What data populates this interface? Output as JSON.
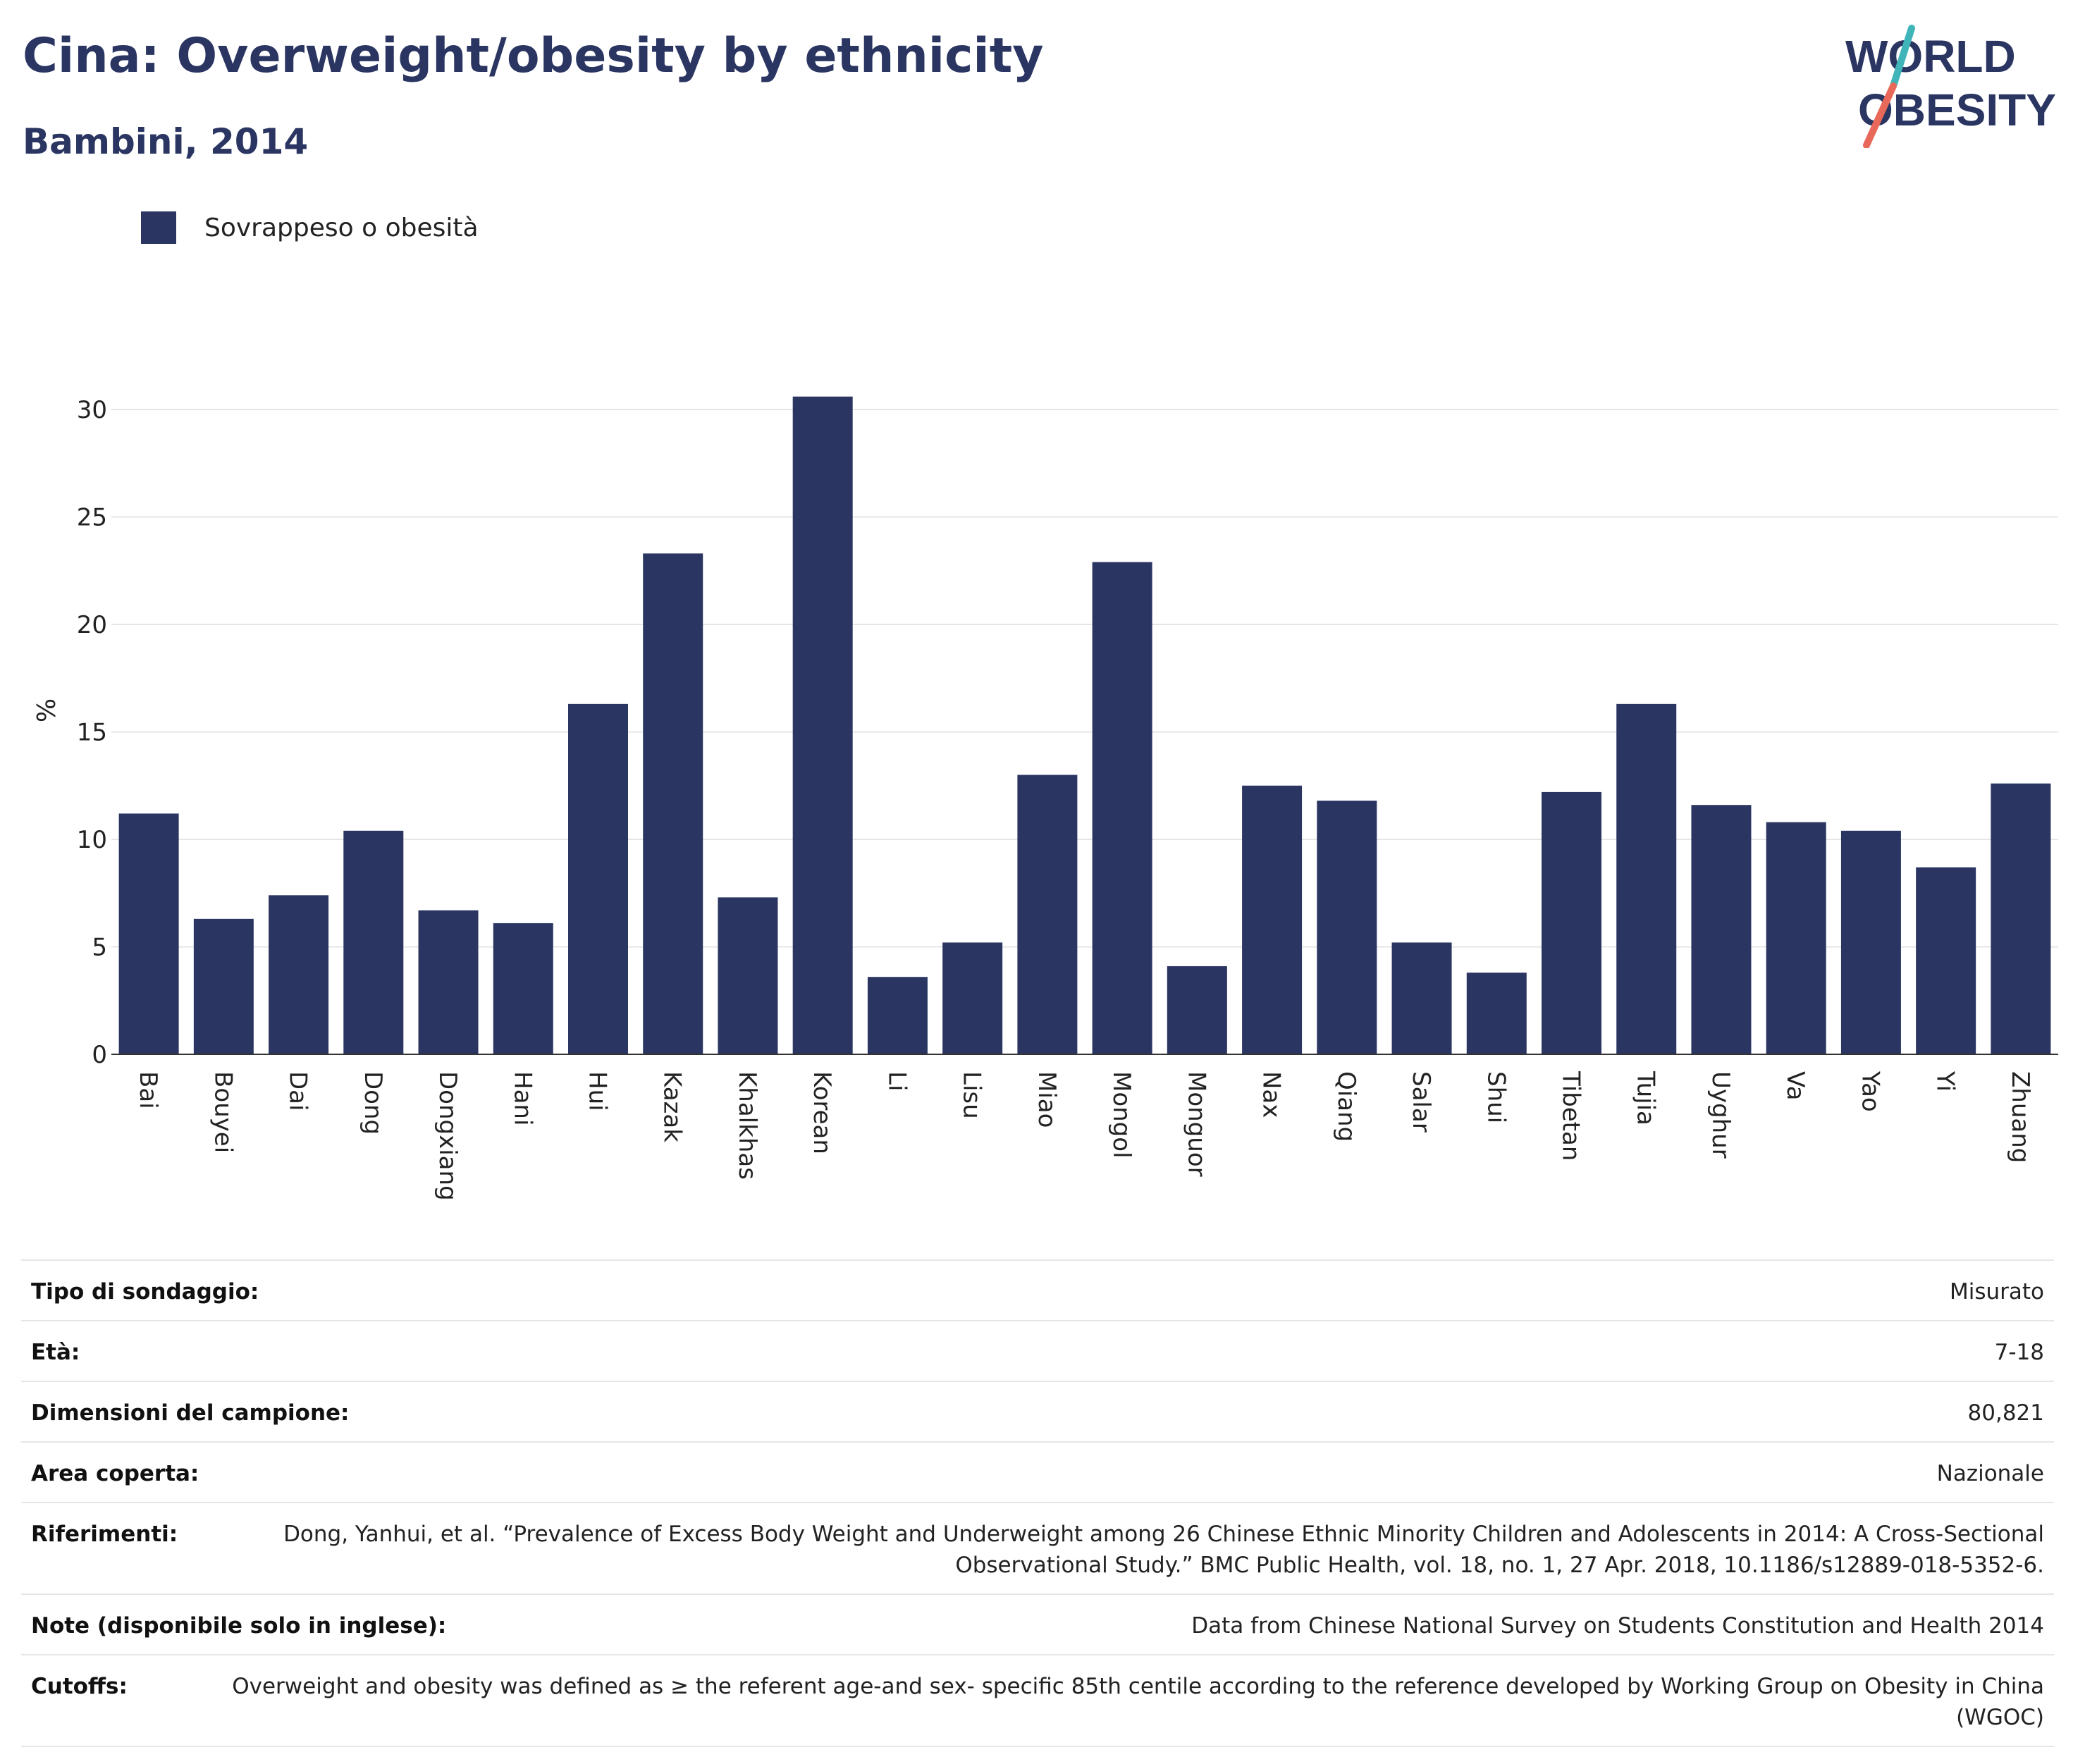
{
  "header": {
    "title": "Cina: Overweight/obesity by ethnicity",
    "subtitle": "Bambini, 2014"
  },
  "logo": {
    "line1": "WORLD",
    "line2": "OBESITY"
  },
  "legend": {
    "label": "Sovrappeso o obesità",
    "color": "#2a3562"
  },
  "colors": {
    "bar": "#2a3562",
    "text": "#222222",
    "grid": "#e6e6e6",
    "logo_text": "#2a3562",
    "logo_slash_top": "#3fb5b9",
    "logo_slash_bottom": "#e8685a"
  },
  "chart_data": {
    "type": "bar",
    "title": "",
    "xlabel": "",
    "ylabel": "%",
    "ylim": [
      0,
      32
    ],
    "yticks": [
      0,
      5,
      10,
      15,
      20,
      25,
      30
    ],
    "grid": true,
    "legend_position": "top-left",
    "categories": [
      "Bai",
      "Bouyei",
      "Dai",
      "Dong",
      "Dongxiang",
      "Hani",
      "Hui",
      "Kazak",
      "Khalkhas",
      "Korean",
      "Li",
      "Lisu",
      "Miao",
      "Mongol",
      "Monguor",
      "Nax",
      "Qiang",
      "Salar",
      "Shui",
      "Tibetan",
      "Tujia",
      "Uyghur",
      "Va",
      "Yao",
      "Yi",
      "Zhuang"
    ],
    "series": [
      {
        "name": "Sovrappeso o obesità",
        "values": [
          11.2,
          6.3,
          7.4,
          10.4,
          6.7,
          6.1,
          16.3,
          23.3,
          7.3,
          30.6,
          3.6,
          5.2,
          13.0,
          22.9,
          4.1,
          12.5,
          11.8,
          5.2,
          3.8,
          12.2,
          16.3,
          11.6,
          10.8,
          10.4,
          8.7,
          12.6
        ]
      }
    ]
  },
  "info": [
    {
      "key": "Tipo di sondaggio:",
      "value": "Misurato"
    },
    {
      "key": "Età:",
      "value": "7-18"
    },
    {
      "key": "Dimensioni del campione:",
      "value": "80,821"
    },
    {
      "key": "Area coperta:",
      "value": "Nazionale"
    },
    {
      "key": "Riferimenti:",
      "value": "Dong, Yanhui, et al. “Prevalence of Excess Body Weight and Underweight among 26 Chinese Ethnic Minority Children and Adolescents in 2014: A Cross-Sectional Observational Study.” BMC Public Health, vol. 18, no. 1, 27 Apr. 2018, 10.1186/s12889-018-5352-6."
    },
    {
      "key": "Note (disponibile solo in inglese):",
      "value": "Data from Chinese National Survey on Students Constitution and Health 2014"
    },
    {
      "key": "Cutoffs:",
      "value": "Overweight and obesity was defined as ≥ the referent age-and sex- specific 85th centile according to the reference developed by Working Group on Obesity in China (WGOC)"
    }
  ]
}
